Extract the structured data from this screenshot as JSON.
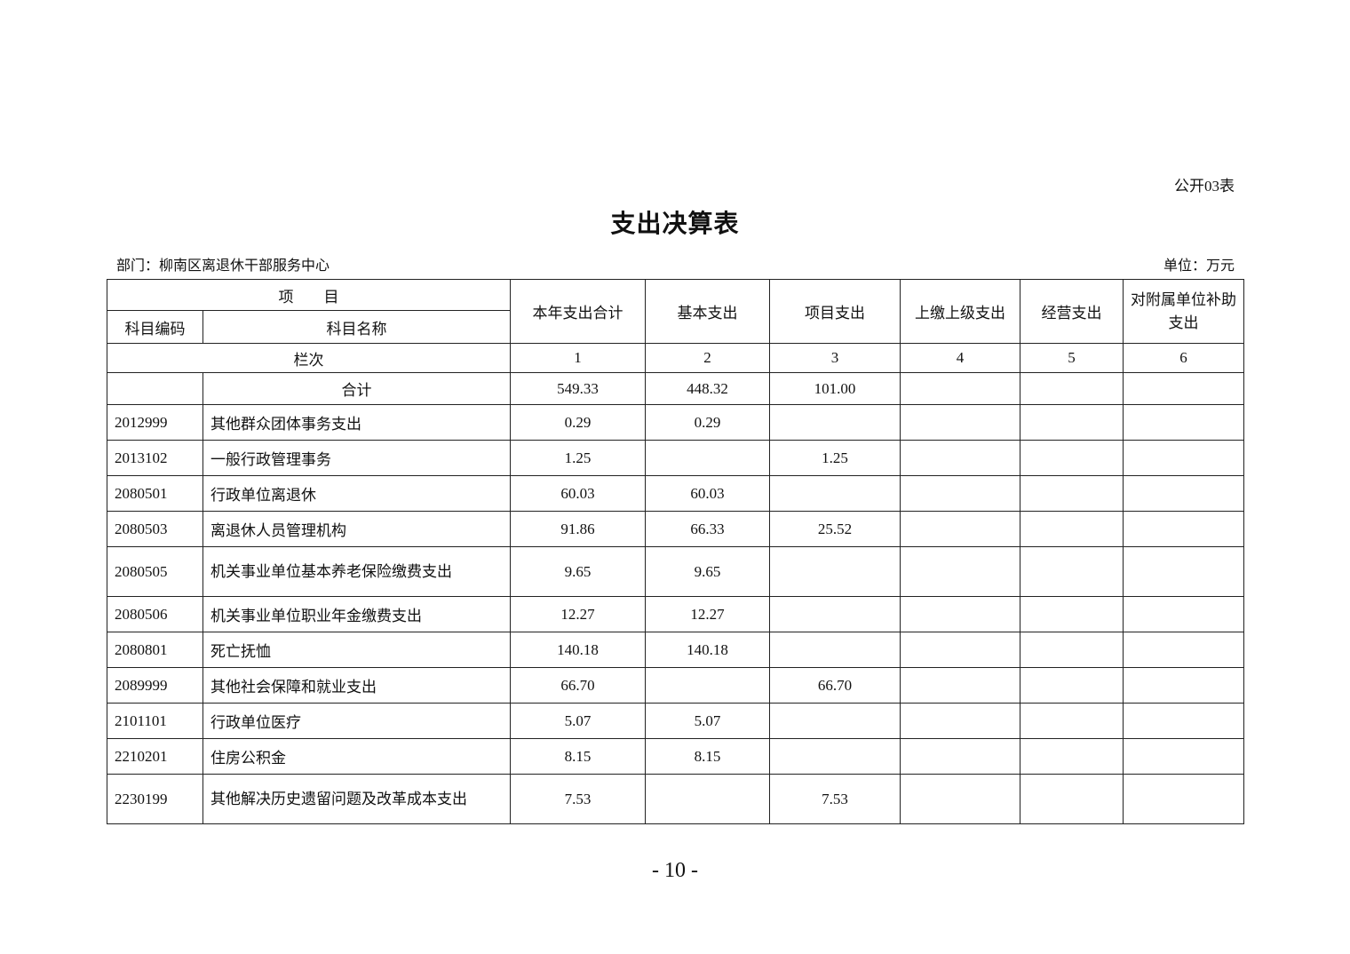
{
  "form_code": "公开03表",
  "title": "支出决算表",
  "department": "部门：柳南区离退休干部服务中心",
  "unit": "单位：万元",
  "header": {
    "item": "项　　目",
    "subject_code": "科目编码",
    "subject_name": "科目名称",
    "columns": [
      "本年支出合计",
      "基本支出",
      "项目支出",
      "上缴上级支出",
      "经营支出",
      "对附属单位补助支出"
    ],
    "column_index_label": "栏次",
    "column_numbers": [
      "1",
      "2",
      "3",
      "4",
      "5",
      "6"
    ]
  },
  "total": {
    "label": "合计",
    "values": [
      "549.33",
      "448.32",
      "101.00",
      "",
      "",
      ""
    ]
  },
  "rows": [
    {
      "code": "2012999",
      "name": "其他群众团体事务支出",
      "values": [
        "0.29",
        "0.29",
        "",
        "",
        "",
        ""
      ]
    },
    {
      "code": "2013102",
      "name": "一般行政管理事务",
      "values": [
        "1.25",
        "",
        "1.25",
        "",
        "",
        ""
      ]
    },
    {
      "code": "2080501",
      "name": "行政单位离退休",
      "values": [
        "60.03",
        "60.03",
        "",
        "",
        "",
        ""
      ]
    },
    {
      "code": "2080503",
      "name": "离退休人员管理机构",
      "values": [
        "91.86",
        "66.33",
        "25.52",
        "",
        "",
        ""
      ]
    },
    {
      "code": "2080505",
      "name": "机关事业单位基本养老保险缴费支出",
      "values": [
        "9.65",
        "9.65",
        "",
        "",
        "",
        ""
      ]
    },
    {
      "code": "2080506",
      "name": "机关事业单位职业年金缴费支出",
      "values": [
        "12.27",
        "12.27",
        "",
        "",
        "",
        ""
      ]
    },
    {
      "code": "2080801",
      "name": "死亡抚恤",
      "values": [
        "140.18",
        "140.18",
        "",
        "",
        "",
        ""
      ]
    },
    {
      "code": "2089999",
      "name": "其他社会保障和就业支出",
      "values": [
        "66.70",
        "",
        "66.70",
        "",
        "",
        ""
      ]
    },
    {
      "code": "2101101",
      "name": "行政单位医疗",
      "values": [
        "5.07",
        "5.07",
        "",
        "",
        "",
        ""
      ]
    },
    {
      "code": "2210201",
      "name": "住房公积金",
      "values": [
        "8.15",
        "8.15",
        "",
        "",
        "",
        ""
      ]
    },
    {
      "code": "2230199",
      "name": "其他解决历史遗留问题及改革成本支出",
      "values": [
        "7.53",
        "",
        "7.53",
        "",
        "",
        ""
      ]
    }
  ],
  "page_number": "- 10 -"
}
